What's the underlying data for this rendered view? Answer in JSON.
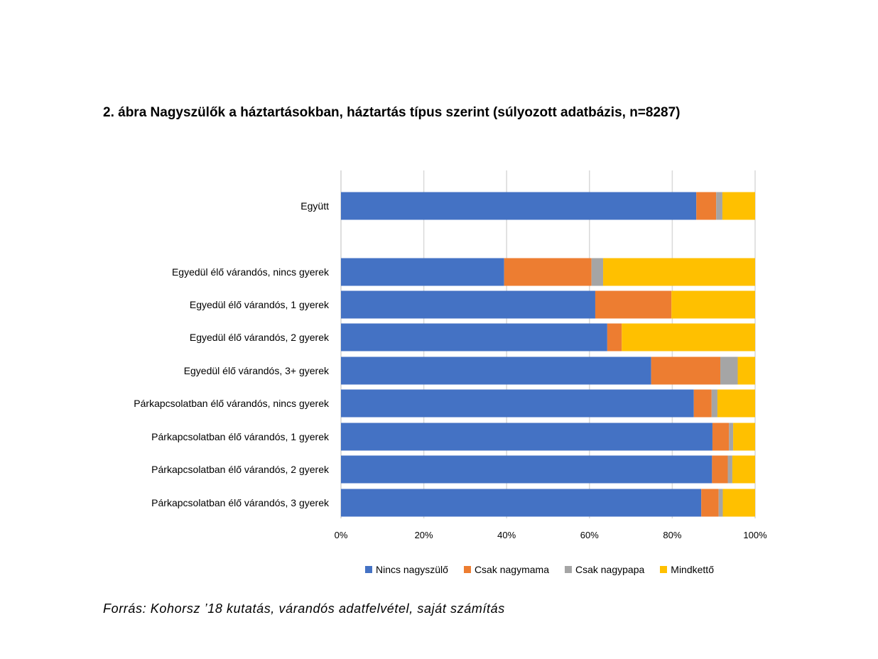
{
  "figure": {
    "title": "2. ábra Nagyszülők a háztartásokban, háztartás típus szerint (súlyozott adatbázis, n=8287)",
    "source": "Forrás: Kohorsz ’18 kutatás, várandós adatfelvétel, saját számítás"
  },
  "chart_data": {
    "type": "bar",
    "orientation": "horizontal",
    "stacked": "percent",
    "categories": [
      "Együtt",
      "Egyedül élő várandós, nincs gyerek",
      "Egyedül élő várandós, 1 gyerek",
      "Egyedül élő várandós, 2 gyerek",
      "Egyedül élő várandós, 3+ gyerek",
      "Párkapcsolatban élő várandós, nincs gyerek",
      "Párkapcsolatban élő várandós, 1 gyerek",
      "Párkapcsolatban élő várandós, 2 gyerek",
      "Párkapcsolatban élő várandós, 3 gyerek"
    ],
    "series": [
      {
        "name": "Nincs nagyszülő",
        "color": "#4472C4",
        "values": [
          85.8,
          39.4,
          61.4,
          64.3,
          74.9,
          85.2,
          89.7,
          89.6,
          87.0
        ]
      },
      {
        "name": "Csak nagymama",
        "color": "#ED7D31",
        "values": [
          4.8,
          21.1,
          18.4,
          3.5,
          16.7,
          4.3,
          4.0,
          3.8,
          4.2
        ]
      },
      {
        "name": "Csak nagypapa",
        "color": "#A5A5A5",
        "values": [
          1.5,
          2.8,
          0.0,
          0.0,
          4.2,
          1.4,
          1.0,
          1.1,
          1.0
        ]
      },
      {
        "name": "Mindkettő",
        "color": "#FFC000",
        "values": [
          7.9,
          36.7,
          20.2,
          32.2,
          4.2,
          9.1,
          5.3,
          5.5,
          7.8
        ]
      }
    ],
    "xlim": [
      0,
      100
    ],
    "x_ticks": [
      "0%",
      "20%",
      "40%",
      "60%",
      "80%",
      "100%"
    ],
    "grid": true,
    "legend_position": "bottom"
  }
}
